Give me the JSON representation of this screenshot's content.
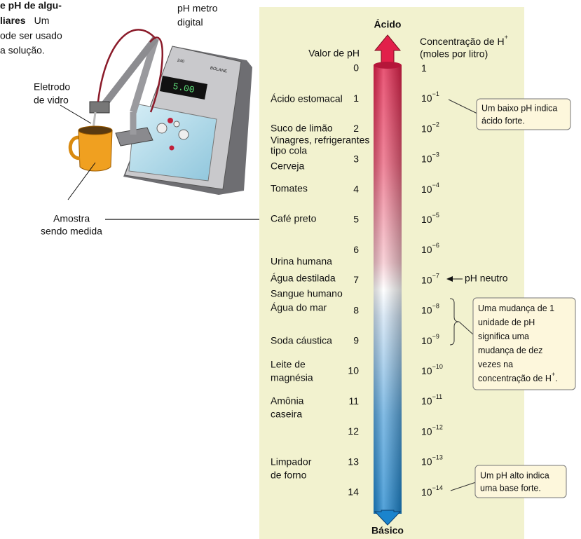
{
  "caption": {
    "line1": "e pH de algu-",
    "line2_bold": "liares",
    "line2_rest": "Um",
    "line3": "ode ser usado",
    "line4": "a solução."
  },
  "meter": {
    "label": [
      "pH metro",
      "digital"
    ],
    "display": "5.00",
    "model": "240",
    "brand": "BOLANE"
  },
  "electrode_label": [
    "Eletrodo",
    "de vidro"
  ],
  "sample_label": [
    "Amostra",
    "sendo medida"
  ],
  "scale": {
    "acid_label": "Ácido",
    "base_label": "Básico",
    "ph_header": "Valor de pH",
    "conc_header": {
      "text": "Concentração de H",
      "sup": "+"
    },
    "conc_unit": "(moles por litro)",
    "ph_values": [
      0,
      1,
      2,
      3,
      4,
      5,
      6,
      7,
      8,
      9,
      10,
      11,
      12,
      13,
      14
    ],
    "concentrations": [
      {
        "base": "1"
      },
      {
        "base": "10",
        "exp": "−1"
      },
      {
        "base": "10",
        "exp": "−2"
      },
      {
        "base": "10",
        "exp": "−3"
      },
      {
        "base": "10",
        "exp": "−4"
      },
      {
        "base": "10",
        "exp": "−5"
      },
      {
        "base": "10",
        "exp": "−6"
      },
      {
        "base": "10",
        "exp": "−7"
      },
      {
        "base": "10",
        "exp": "−8"
      },
      {
        "base": "10",
        "exp": "−9"
      },
      {
        "base": "10",
        "exp": "−10"
      },
      {
        "base": "10",
        "exp": "−11"
      },
      {
        "base": "10",
        "exp": "−12"
      },
      {
        "base": "10",
        "exp": "−13"
      },
      {
        "base": "10",
        "exp": "−14"
      }
    ],
    "substances": [
      {
        "lines": [
          "Ácido estomacal"
        ]
      },
      {
        "lines": [
          "Suco de limão"
        ]
      },
      {
        "lines": [
          "Vinagres, refrigerantes",
          "tipo cola"
        ]
      },
      {
        "lines": [
          "Cerveja"
        ]
      },
      {
        "lines": [
          "Tomates"
        ]
      },
      {
        "lines": [
          "Café preto"
        ]
      },
      {
        "lines": [
          "Urina humana"
        ]
      },
      {
        "lines": [
          "Água destilada"
        ]
      },
      {
        "lines": [
          "Sangue humano"
        ]
      },
      {
        "lines": [
          "Água do mar"
        ]
      },
      {
        "lines": [
          "Soda cáustica"
        ]
      },
      {
        "lines": [
          "Leite de",
          "magnésia"
        ]
      },
      {
        "lines": [
          "Amônia",
          "caseira"
        ]
      },
      {
        "lines": [
          "Limpador",
          "de forno"
        ]
      }
    ]
  },
  "callouts": {
    "low": [
      "Um baixo pH indica",
      "ácido forte."
    ],
    "neutral": "pH neutro",
    "change": {
      "lines": [
        "Uma mudança de 1",
        "unidade de pH",
        "significa uma",
        "mudança de dez",
        "vezes na",
        "concentração de H"
      ],
      "sup": "+",
      "end": "."
    },
    "high": [
      "Um pH alto indica",
      "uma base forte."
    ]
  }
}
